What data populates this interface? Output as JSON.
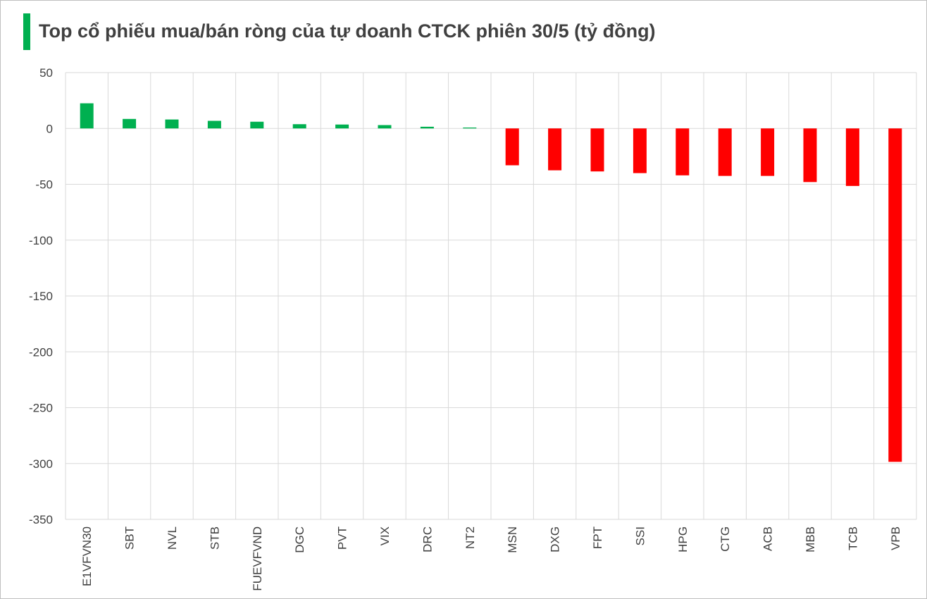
{
  "title": "Top cổ phiếu mua/bán ròng của tự doanh CTCK phiên 30/5 (tỷ đồng)",
  "colors": {
    "accent": "#00b050",
    "positive": "#00b050",
    "negative": "#ff0000",
    "grid": "#d9d9d9",
    "title": "#404040",
    "tick_text": "#404040"
  },
  "chart_data": {
    "type": "bar",
    "title": "Top cổ phiếu mua/bán ròng của tự doanh CTCK phiên 30/5 (tỷ đồng)",
    "xlabel": "",
    "ylabel": "",
    "ylim": [
      -350,
      50
    ],
    "yticks": [
      50,
      0,
      -50,
      -100,
      -150,
      -200,
      -250,
      -300,
      -350
    ],
    "ytick_labels": [
      "50",
      "0",
      "-50",
      "-100",
      "-150",
      "-200",
      "-250",
      "-300",
      "-350"
    ],
    "grid": true,
    "legend": "none",
    "categories": [
      "E1VFVN30",
      "SBT",
      "NVL",
      "STB",
      "FUEVFVND",
      "DGC",
      "PVT",
      "VIX",
      "DRC",
      "NT2",
      "MSN",
      "DXG",
      "FPT",
      "SSI",
      "HPG",
      "CTG",
      "ACB",
      "MBB",
      "TCB",
      "VPB"
    ],
    "values": [
      22.5,
      8.5,
      8,
      6.8,
      6,
      3.8,
      3.5,
      3,
      1.5,
      0.8,
      -33,
      -37.5,
      -38.5,
      -40,
      -42,
      -42.5,
      -42.5,
      -48,
      -51.5,
      -298.5
    ]
  }
}
